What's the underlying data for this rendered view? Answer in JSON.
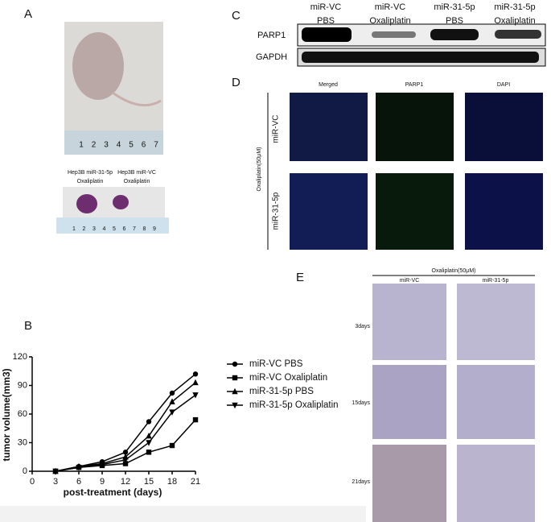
{
  "panels": {
    "a": {
      "letter": "A",
      "tumor_labels": [
        [
          "Hep3B miR-31-5p",
          "Oxaliplatin"
        ],
        [
          "Hep3B miR-VC",
          "Oxaliplatin"
        ]
      ],
      "ruler_top": [
        "1",
        "2",
        "3",
        "4",
        "5",
        "6",
        "7"
      ],
      "ruler_bottom": [
        "1",
        "2",
        "3",
        "4",
        "5",
        "6",
        "7",
        "8",
        "9"
      ]
    },
    "b": {
      "letter": "B"
    },
    "c": {
      "letter": "C",
      "columns": [
        [
          "miR-VC",
          "PBS"
        ],
        [
          "miR-VC",
          "Oxaliplatin"
        ],
        [
          "miR-31-5p",
          "PBS"
        ],
        [
          "miR-31-5p",
          "Oxaliplatin"
        ]
      ],
      "rows": [
        "PARP1",
        "GAPDH"
      ]
    },
    "d": {
      "letter": "D",
      "columns": [
        "Merged",
        "PARP1",
        "DAPI"
      ],
      "rows": [
        "miR-VC",
        "miR-31-5p"
      ],
      "treatment": "Oxaliplatin(50μM)"
    },
    "e": {
      "letter": "E",
      "treatment": "Oxaliplatin(50μM)",
      "columns": [
        "miR-VC",
        "miR-31-5p"
      ],
      "rows": [
        "3days",
        "15days",
        "21days"
      ]
    }
  },
  "chart_data": {
    "type": "line",
    "x_label": "post-treatment (days)",
    "y_label": "tumor volume(mm3)",
    "x": [
      3,
      6,
      9,
      12,
      15,
      18,
      21
    ],
    "series": [
      {
        "name": "miR-VC PBS",
        "color": "#000000",
        "marker": "circle",
        "values": [
          0,
          5,
          10,
          20,
          52,
          82,
          102
        ]
      },
      {
        "name": "miR-VC Oxaliplatin",
        "color": "#000000",
        "marker": "square",
        "values": [
          0,
          4,
          6,
          8,
          20,
          27,
          54
        ]
      },
      {
        "name": "miR-31-5p PBS",
        "color": "#000000",
        "marker": "triangle",
        "values": [
          0,
          5,
          8,
          15,
          37,
          73,
          93
        ]
      },
      {
        "name": "miR-31-5p Oxaliplatin",
        "color": "#000000",
        "marker": "triangle-down",
        "values": [
          0,
          4,
          7,
          12,
          30,
          62,
          80
        ]
      }
    ],
    "xlim": [
      0,
      21
    ],
    "xticks": [
      0,
      3,
      6,
      9,
      12,
      15,
      18,
      21
    ],
    "ylim": [
      0,
      120
    ],
    "yticks": [
      0,
      30,
      60,
      90,
      120
    ]
  }
}
